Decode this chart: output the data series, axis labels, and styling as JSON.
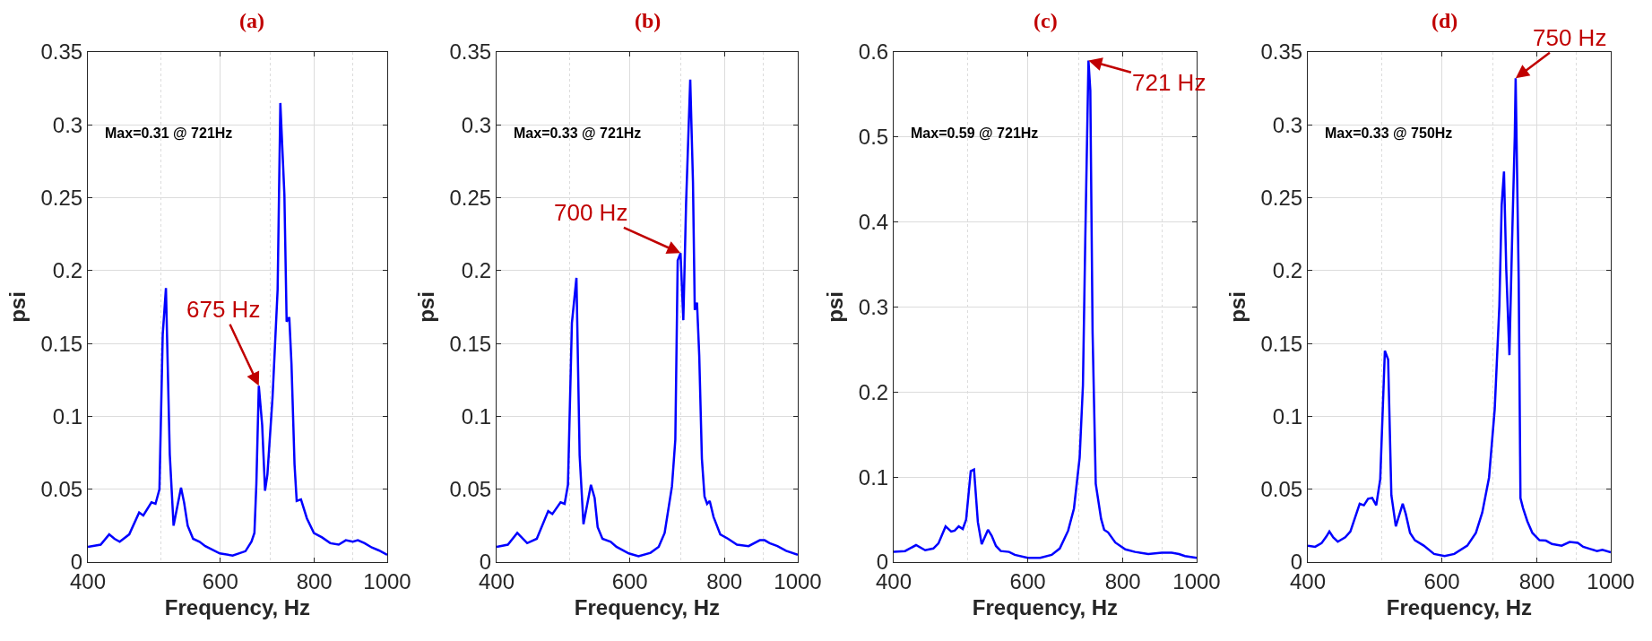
{
  "chart_data": [
    {
      "type": "line",
      "title": "(a)",
      "xlabel": "Frequency, Hz",
      "ylabel": "psi",
      "log": "x",
      "grid": true,
      "xlim": [
        400,
        1000
      ],
      "xticks": [
        400,
        600,
        800,
        1000
      ],
      "ylim": [
        0,
        0.35
      ],
      "yticks": [
        0,
        0.05,
        0.1,
        0.15,
        0.2,
        0.25,
        0.3,
        0.35
      ],
      "annotations": [
        "Max=0.31 @ 721Hz",
        {
          "text": "675 Hz",
          "x": 675,
          "y": 0.121
        }
      ],
      "series": [
        {
          "color": "#0000ff",
          "x": [
            400,
            416,
            427,
            434,
            441,
            454,
            468,
            474,
            486,
            492,
            498,
            503,
            508,
            514,
            520,
            532,
            537,
            543,
            552,
            563,
            573,
            599,
            623,
            648,
            660,
            666,
            670,
            675,
            682,
            688,
            693,
            704,
            715,
            721,
            730,
            735,
            741,
            746,
            753,
            758,
            768,
            782,
            799,
            819,
            840,
            862,
            881,
            900,
            914,
            933,
            954,
            975,
            1000
          ],
          "values": [
            0.0105,
            0.012,
            0.019,
            0.016,
            0.014,
            0.019,
            0.034,
            0.032,
            0.041,
            0.04,
            0.05,
            0.156,
            0.188,
            0.074,
            0.025,
            0.051,
            0.041,
            0.025,
            0.016,
            0.014,
            0.011,
            0.006,
            0.0045,
            0.0075,
            0.014,
            0.02,
            0.054,
            0.121,
            0.094,
            0.049,
            0.06,
            0.113,
            0.187,
            0.315,
            0.252,
            0.165,
            0.168,
            0.136,
            0.067,
            0.042,
            0.043,
            0.03,
            0.02,
            0.017,
            0.013,
            0.012,
            0.015,
            0.014,
            0.015,
            0.013,
            0.01,
            0.008,
            0.005
          ]
        }
      ]
    },
    {
      "type": "line",
      "title": "(b)",
      "xlabel": "Frequency, Hz",
      "ylabel": "psi",
      "log": "x",
      "grid": true,
      "xlim": [
        400,
        1000
      ],
      "xticks": [
        400,
        600,
        800,
        1000
      ],
      "ylim": [
        0,
        0.35
      ],
      "yticks": [
        0,
        0.05,
        0.1,
        0.15,
        0.2,
        0.25,
        0.3,
        0.35
      ],
      "annotations": [
        "Max=0.33 @ 721Hz",
        {
          "text": "700 Hz",
          "x": 700,
          "y": 0.212
        }
      ],
      "series": [
        {
          "color": "#0000ff",
          "x": [
            400,
            414,
            426,
            439,
            452,
            468,
            474,
            486,
            492,
            497,
            503,
            510,
            515,
            521,
            533,
            539,
            544,
            552,
            566,
            576,
            598,
            616,
            639,
            655,
            667,
            682,
            689,
            694,
            700,
            706,
            712,
            721,
            727,
            731,
            736,
            741,
            747,
            753,
            759,
            765,
            774,
            790,
            809,
            831,
            861,
            891,
            904,
            918,
            940,
            965,
            1000
          ],
          "values": [
            0.0105,
            0.012,
            0.02,
            0.013,
            0.016,
            0.035,
            0.033,
            0.041,
            0.04,
            0.053,
            0.164,
            0.195,
            0.073,
            0.026,
            0.053,
            0.044,
            0.024,
            0.016,
            0.014,
            0.0105,
            0.006,
            0.004,
            0.0064,
            0.0105,
            0.02,
            0.052,
            0.084,
            0.207,
            0.212,
            0.166,
            0.247,
            0.331,
            0.261,
            0.173,
            0.178,
            0.142,
            0.071,
            0.045,
            0.04,
            0.042,
            0.031,
            0.019,
            0.016,
            0.012,
            0.011,
            0.015,
            0.015,
            0.013,
            0.011,
            0.0078,
            0.005
          ]
        }
      ]
    },
    {
      "type": "line",
      "title": "(c)",
      "xlabel": "Frequency, Hz",
      "ylabel": "psi",
      "log": "x",
      "grid": true,
      "xlim": [
        400,
        1000
      ],
      "xticks": [
        400,
        600,
        800,
        1000
      ],
      "ylim": [
        0,
        0.6
      ],
      "yticks": [
        0,
        0.1,
        0.2,
        0.3,
        0.4,
        0.5,
        0.6
      ],
      "annotations": [
        "Max=0.59 @ 721Hz",
        {
          "text": "721 Hz",
          "x": 721,
          "y": 0.59
        }
      ],
      "series": [
        {
          "color": "#0000ff",
          "x": [
            400,
            414,
            428,
            440,
            451,
            458,
            468,
            476,
            481,
            487,
            493,
            498,
            505,
            510,
            516,
            522,
            532,
            538,
            545,
            553,
            567,
            577,
            600,
            623,
            645,
            661,
            678,
            690,
            702,
            709,
            714,
            721,
            725,
            730,
            737,
            749,
            756,
            765,
            782,
            806,
            830,
            864,
            900,
            927,
            948,
            965,
            1000
          ],
          "values": [
            0.012,
            0.013,
            0.02,
            0.014,
            0.016,
            0.022,
            0.042,
            0.036,
            0.037,
            0.042,
            0.039,
            0.05,
            0.107,
            0.109,
            0.047,
            0.021,
            0.038,
            0.031,
            0.019,
            0.013,
            0.012,
            0.0085,
            0.005,
            0.005,
            0.0085,
            0.016,
            0.037,
            0.063,
            0.123,
            0.208,
            0.379,
            0.59,
            0.555,
            0.27,
            0.092,
            0.051,
            0.038,
            0.035,
            0.023,
            0.015,
            0.012,
            0.0095,
            0.011,
            0.011,
            0.0095,
            0.0071,
            0.005
          ]
        }
      ]
    },
    {
      "type": "line",
      "title": "(d)",
      "xlabel": "Frequency, Hz",
      "ylabel": "psi",
      "log": "x",
      "grid": true,
      "xlim": [
        400,
        1000
      ],
      "xticks": [
        400,
        600,
        800,
        1000
      ],
      "ylim": [
        0,
        0.35
      ],
      "yticks": [
        0,
        0.05,
        0.1,
        0.15,
        0.2,
        0.25,
        0.3,
        0.35
      ],
      "annotations": [
        "Max=0.33 @ 750Hz",
        {
          "text": "750 Hz",
          "x": 750,
          "y": 0.332
        }
      ],
      "series": [
        {
          "color": "#0000ff",
          "x": [
            400,
            409,
            417,
            423,
            427,
            432,
            438,
            448,
            455,
            468,
            474,
            480,
            486,
            492,
            498,
            505,
            510,
            515,
            522,
            533,
            538,
            545,
            553,
            568,
            586,
            605,
            623,
            648,
            665,
            678,
            692,
            704,
            714,
            719,
            724,
            729,
            736,
            742,
            748,
            750,
            757,
            761,
            767,
            777,
            789,
            806,
            822,
            837,
            862,
            883,
            905,
            920,
            940,
            959,
            975,
            1000
          ],
          "values": [
            0.0113,
            0.0105,
            0.013,
            0.0175,
            0.021,
            0.017,
            0.014,
            0.017,
            0.021,
            0.04,
            0.039,
            0.0435,
            0.044,
            0.039,
            0.057,
            0.145,
            0.139,
            0.046,
            0.0245,
            0.04,
            0.033,
            0.02,
            0.015,
            0.0113,
            0.0056,
            0.0042,
            0.0056,
            0.0113,
            0.02,
            0.034,
            0.058,
            0.105,
            0.176,
            0.245,
            0.268,
            0.201,
            0.142,
            0.221,
            0.292,
            0.332,
            0.193,
            0.044,
            0.037,
            0.028,
            0.02,
            0.015,
            0.0147,
            0.0124,
            0.0113,
            0.0138,
            0.0133,
            0.0105,
            0.009,
            0.0076,
            0.0085,
            0.0068
          ]
        }
      ]
    }
  ]
}
